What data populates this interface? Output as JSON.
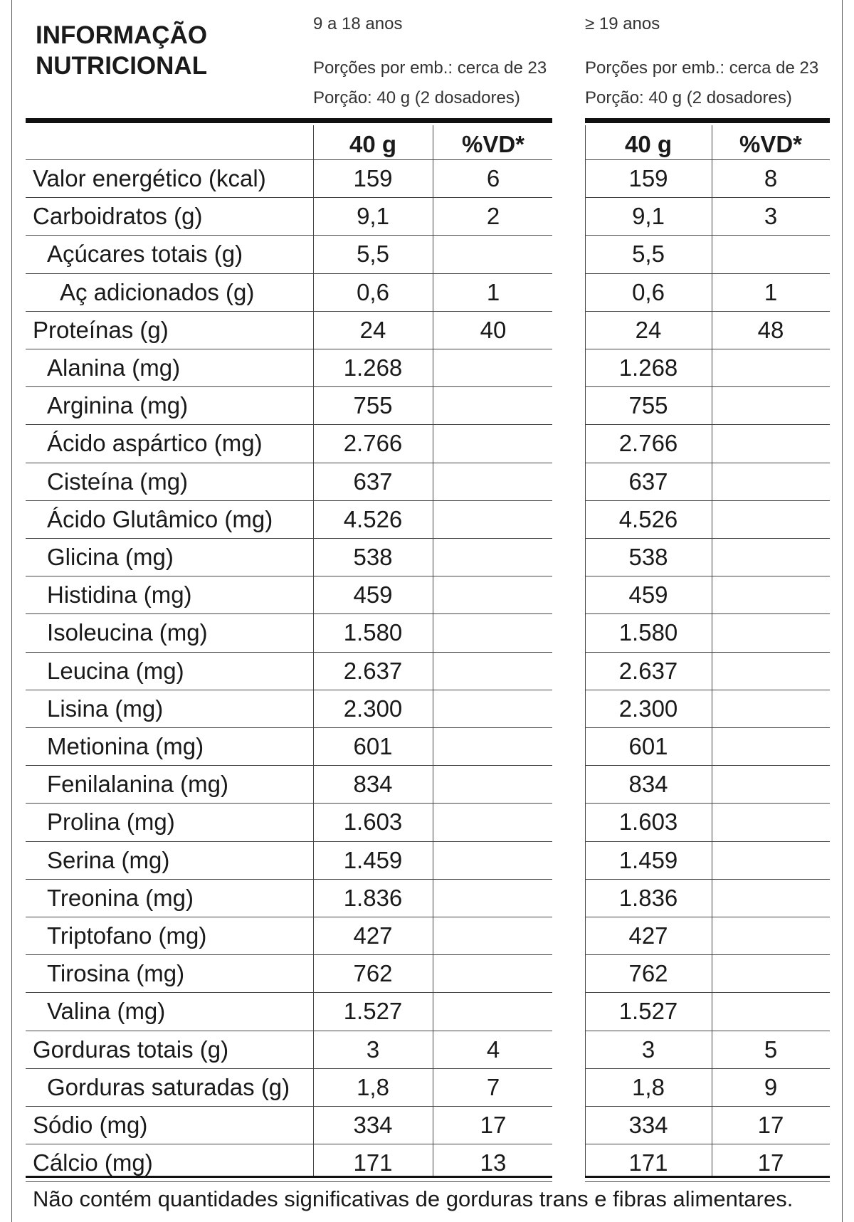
{
  "header": {
    "title_line1": "INFORMAÇÃO",
    "title_line2": "NUTRICIONAL",
    "groups": [
      {
        "age": "9 a 18 anos",
        "servings": "Porções por emb.: cerca de 23",
        "portion": "Porção: 40 g (2 dosadores)"
      },
      {
        "age": "≥ 19 anos",
        "servings": "Porções por emb.: cerca de 23",
        "portion": "Porção: 40 g (2 dosadores)"
      }
    ],
    "col_amount": "40 g",
    "col_dv": "%VD*"
  },
  "rows": [
    {
      "label": "Valor energético (kcal)",
      "indent": 0,
      "a1": "159",
      "d1": "6",
      "a2": "159",
      "d2": "8"
    },
    {
      "label": "Carboidratos (g)",
      "indent": 0,
      "a1": "9,1",
      "d1": "2",
      "a2": "9,1",
      "d2": "3"
    },
    {
      "label": "Açúcares totais (g)",
      "indent": 1,
      "a1": "5,5",
      "d1": "",
      "a2": "5,5",
      "d2": ""
    },
    {
      "label": "Aç adicionados (g)",
      "indent": 2,
      "a1": "0,6",
      "d1": "1",
      "a2": "0,6",
      "d2": "1"
    },
    {
      "label": "Proteínas (g)",
      "indent": 0,
      "a1": "24",
      "d1": "40",
      "a2": "24",
      "d2": "48"
    },
    {
      "label": "Alanina (mg)",
      "indent": 1,
      "a1": "1.268",
      "d1": "",
      "a2": "1.268",
      "d2": ""
    },
    {
      "label": "Arginina (mg)",
      "indent": 1,
      "a1": "755",
      "d1": "",
      "a2": "755",
      "d2": ""
    },
    {
      "label": "Ácido aspártico (mg)",
      "indent": 1,
      "a1": "2.766",
      "d1": "",
      "a2": "2.766",
      "d2": ""
    },
    {
      "label": "Cisteína (mg)",
      "indent": 1,
      "a1": "637",
      "d1": "",
      "a2": "637",
      "d2": ""
    },
    {
      "label": "Ácido Glutâmico (mg)",
      "indent": 1,
      "a1": "4.526",
      "d1": "",
      "a2": "4.526",
      "d2": ""
    },
    {
      "label": "Glicina (mg)",
      "indent": 1,
      "a1": "538",
      "d1": "",
      "a2": "538",
      "d2": ""
    },
    {
      "label": "Histidina (mg)",
      "indent": 1,
      "a1": "459",
      "d1": "",
      "a2": "459",
      "d2": ""
    },
    {
      "label": "Isoleucina (mg)",
      "indent": 1,
      "a1": "1.580",
      "d1": "",
      "a2": "1.580",
      "d2": ""
    },
    {
      "label": "Leucina (mg)",
      "indent": 1,
      "a1": "2.637",
      "d1": "",
      "a2": "2.637",
      "d2": ""
    },
    {
      "label": "Lisina (mg)",
      "indent": 1,
      "a1": "2.300",
      "d1": "",
      "a2": "2.300",
      "d2": ""
    },
    {
      "label": "Metionina (mg)",
      "indent": 1,
      "a1": "601",
      "d1": "",
      "a2": "601",
      "d2": ""
    },
    {
      "label": "Fenilalanina (mg)",
      "indent": 1,
      "a1": "834",
      "d1": "",
      "a2": "834",
      "d2": ""
    },
    {
      "label": "Prolina (mg)",
      "indent": 1,
      "a1": "1.603",
      "d1": "",
      "a2": "1.603",
      "d2": ""
    },
    {
      "label": "Serina (mg)",
      "indent": 1,
      "a1": "1.459",
      "d1": "",
      "a2": "1.459",
      "d2": ""
    },
    {
      "label": "Treonina (mg)",
      "indent": 1,
      "a1": "1.836",
      "d1": "",
      "a2": "1.836",
      "d2": ""
    },
    {
      "label": "Triptofano (mg)",
      "indent": 1,
      "a1": "427",
      "d1": "",
      "a2": "427",
      "d2": ""
    },
    {
      "label": "Tirosina (mg)",
      "indent": 1,
      "a1": "762",
      "d1": "",
      "a2": "762",
      "d2": ""
    },
    {
      "label": "Valina (mg)",
      "indent": 1,
      "a1": "1.527",
      "d1": "",
      "a2": "1.527",
      "d2": ""
    },
    {
      "label": "Gorduras totais (g)",
      "indent": 0,
      "a1": "3",
      "d1": "4",
      "a2": "3",
      "d2": "5"
    },
    {
      "label": "Gorduras saturadas (g)",
      "indent": 1,
      "a1": "1,8",
      "d1": "7",
      "a2": "1,8",
      "d2": "9"
    },
    {
      "label": "Sódio (mg)",
      "indent": 0,
      "a1": "334",
      "d1": "17",
      "a2": "334",
      "d2": "17"
    },
    {
      "label": "Cálcio (mg)",
      "indent": 0,
      "a1": "171",
      "d1": "13",
      "a2": "171",
      "d2": "17"
    }
  ],
  "footnote": "Não contém quantidades significativas de gorduras trans e fibras alimentares."
}
